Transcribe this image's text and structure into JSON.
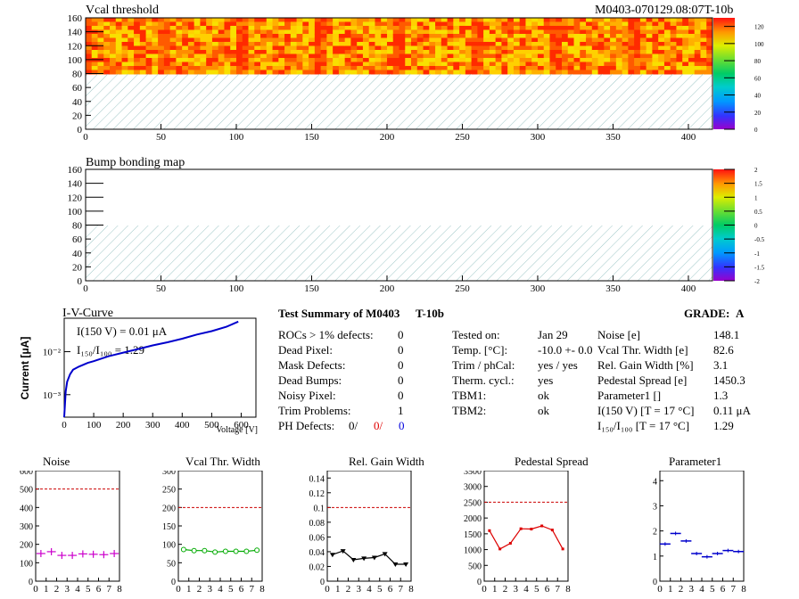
{
  "header": {
    "module_title": "M0403-070129.08:07T-10b"
  },
  "maps": {
    "vcal": {
      "title": "Vcal threshold",
      "xticks": [
        "0",
        "50",
        "100",
        "150",
        "200",
        "250",
        "300",
        "350",
        "400"
      ],
      "yticks": [
        "0",
        "20",
        "40",
        "60",
        "80",
        "100",
        "120",
        "140",
        "160"
      ],
      "cbar_ticks": [
        "0",
        "20",
        "40",
        "60",
        "80",
        "100",
        "120"
      ]
    },
    "bump": {
      "title": "Bump bonding map",
      "xticks": [
        "0",
        "50",
        "100",
        "150",
        "200",
        "250",
        "300",
        "350",
        "400"
      ],
      "yticks": [
        "0",
        "20",
        "40",
        "60",
        "80",
        "100",
        "120",
        "140",
        "160"
      ],
      "cbar_ticks": [
        "-2",
        "-1.5",
        "-1",
        "-0.5",
        "0",
        "0.5",
        "1",
        "1.5",
        "2"
      ]
    }
  },
  "iv": {
    "title": "I-V-Curve",
    "ylabel": "Current [μA]",
    "xlabel": "Voltage [V]",
    "xticks": [
      "0",
      "100",
      "200",
      "300",
      "400",
      "500",
      "600"
    ],
    "yticks": [
      "10⁻³",
      "10⁻²"
    ],
    "annot1": "I(150 V) = 0.01 μA",
    "annot2": "I₁₅₀/I₁₀₀ = 1.29"
  },
  "summary": {
    "title": "Test Summary of M0403",
    "tag": "T-10b",
    "grade_label": "GRADE:",
    "grade": "A",
    "defects": [
      {
        "label": "ROCs > 1% defects:",
        "value": "0"
      },
      {
        "label": "Dead Pixel:",
        "value": "0"
      },
      {
        "label": "Mask Defects:",
        "value": "0"
      },
      {
        "label": "Dead Bumps:",
        "value": "0"
      },
      {
        "label": "Noisy Pixel:",
        "value": "0"
      },
      {
        "label": "Trim Problems:",
        "value": "1"
      }
    ],
    "ph_label": "PH Defects:",
    "ph_values": [
      "0/",
      "0/",
      "0"
    ],
    "ph_colors": [
      "#000000",
      "#e00000",
      "#0000dd"
    ],
    "conditions": [
      {
        "label": "Tested on:",
        "value": "Jan 29"
      },
      {
        "label": "Temp. [°C]:",
        "value": "-10.0 +- 0.0"
      },
      {
        "label": "Trim / phCal:",
        "value": "yes / yes"
      },
      {
        "label": "Therm. cycl.:",
        "value": "yes"
      },
      {
        "label": "TBM1:",
        "value": "ok"
      },
      {
        "label": "TBM2:",
        "value": "ok"
      }
    ],
    "params": [
      {
        "label": "Noise [e]",
        "value": "148.1"
      },
      {
        "label": "Vcal Thr. Width [e]",
        "value": "82.6"
      },
      {
        "label": "Rel. Gain Width [%]",
        "value": "3.1"
      },
      {
        "label": "Pedestal Spread [e]",
        "value": "1450.3"
      },
      {
        "label": "Parameter1 []",
        "value": "1.3"
      },
      {
        "label": "I(150 V)  [T = 17 °C]",
        "value": "0.11 μA"
      },
      {
        "label": "I₁₅₀/I₁₀₀  [T = 17 °C]",
        "value": "1.29"
      }
    ]
  },
  "chart_data": [
    {
      "type": "scatter",
      "title": "Noise",
      "x": [
        0.5,
        1.5,
        2.5,
        3.5,
        4.5,
        5.5,
        6.5,
        7.5
      ],
      "y": [
        150,
        160,
        140,
        140,
        148,
        146,
        144,
        150
      ],
      "ylim": [
        0,
        600
      ],
      "yticks": [
        "0",
        "100",
        "200",
        "300",
        "400",
        "500",
        "600"
      ],
      "xticks": [
        "0",
        "1",
        "2",
        "3",
        "4",
        "5",
        "6",
        "7",
        "8"
      ],
      "xlim": [
        0,
        8
      ],
      "limit": 500,
      "color": "#cc00cc",
      "style": "cross"
    },
    {
      "type": "line",
      "title": "Vcal Thr. Width",
      "x": [
        0.5,
        1.5,
        2.5,
        3.5,
        4.5,
        5.5,
        6.5,
        7.5
      ],
      "y": [
        86,
        83,
        83,
        79,
        81,
        81,
        81,
        84
      ],
      "ylim": [
        0,
        300
      ],
      "yticks": [
        "0",
        "50",
        "100",
        "150",
        "200",
        "250",
        "300"
      ],
      "xticks": [
        "0",
        "1",
        "2",
        "3",
        "4",
        "5",
        "6",
        "7",
        "8"
      ],
      "xlim": [
        0,
        8
      ],
      "limit": 200,
      "color": "#00aa00",
      "style": "circle"
    },
    {
      "type": "line",
      "title": "Rel. Gain Width",
      "x": [
        0.5,
        1.5,
        2.5,
        3.5,
        4.5,
        5.5,
        6.5,
        7.5
      ],
      "y": [
        0.036,
        0.041,
        0.029,
        0.031,
        0.032,
        0.037,
        0.023,
        0.023
      ],
      "ylim": [
        0,
        0.15
      ],
      "yticks": [
        "0",
        "0.02",
        "0.04",
        "0.06",
        "0.08",
        "0.1",
        "0.12",
        "0.14"
      ],
      "ytickvals": [
        0,
        0.02,
        0.04,
        0.06,
        0.08,
        0.1,
        0.12,
        0.14
      ],
      "xticks": [
        "0",
        "1",
        "2",
        "3",
        "4",
        "5",
        "6",
        "7",
        "8"
      ],
      "xlim": [
        0,
        8
      ],
      "limit": 0.1,
      "color": "#000000",
      "style": "triangle"
    },
    {
      "type": "line",
      "title": "Pedestal Spread",
      "x": [
        0.5,
        1.5,
        2.5,
        3.5,
        4.5,
        5.5,
        6.5,
        7.5
      ],
      "y": [
        1600,
        1020,
        1200,
        1660,
        1650,
        1750,
        1620,
        1020
      ],
      "ylim": [
        0,
        3500
      ],
      "yticks": [
        "0",
        "500",
        "1000",
        "1500",
        "2000",
        "2500",
        "3000",
        "3500"
      ],
      "xticks": [
        "0",
        "1",
        "2",
        "3",
        "4",
        "5",
        "6",
        "7",
        "8"
      ],
      "xlim": [
        0,
        8
      ],
      "limit": 2500,
      "color": "#dd0000",
      "style": "square"
    },
    {
      "type": "scatter",
      "title": "Parameter1",
      "x": [
        0.5,
        1.5,
        2.5,
        3.5,
        4.5,
        5.5,
        6.5,
        7.5
      ],
      "y": [
        1.48,
        1.9,
        1.6,
        1.1,
        0.97,
        1.1,
        1.22,
        1.18
      ],
      "ylim": [
        0,
        4.4
      ],
      "yticks": [
        "0",
        "1",
        "2",
        "3",
        "4"
      ],
      "ytickvals": [
        0,
        1,
        2,
        3,
        4
      ],
      "xticks": [
        "0",
        "1",
        "2",
        "3",
        "4",
        "5",
        "6",
        "7",
        "8"
      ],
      "xlim": [
        0,
        8
      ],
      "limit": null,
      "color": "#0000cc",
      "style": "hbar"
    },
    {
      "type": "line",
      "title": "I-V-Curve",
      "x": [
        0,
        5,
        10,
        20,
        30,
        50,
        80,
        100,
        150,
        200,
        250,
        300,
        350,
        400,
        450,
        500,
        550,
        590
      ],
      "y": [
        0.0003,
        0.0012,
        0.002,
        0.003,
        0.0038,
        0.0045,
        0.0055,
        0.006,
        0.0078,
        0.0095,
        0.0115,
        0.014,
        0.0165,
        0.02,
        0.025,
        0.03,
        0.038,
        0.05
      ],
      "xlim": [
        0,
        650
      ],
      "ylim": [
        0.0003,
        0.06
      ],
      "scale": "log-y"
    }
  ]
}
